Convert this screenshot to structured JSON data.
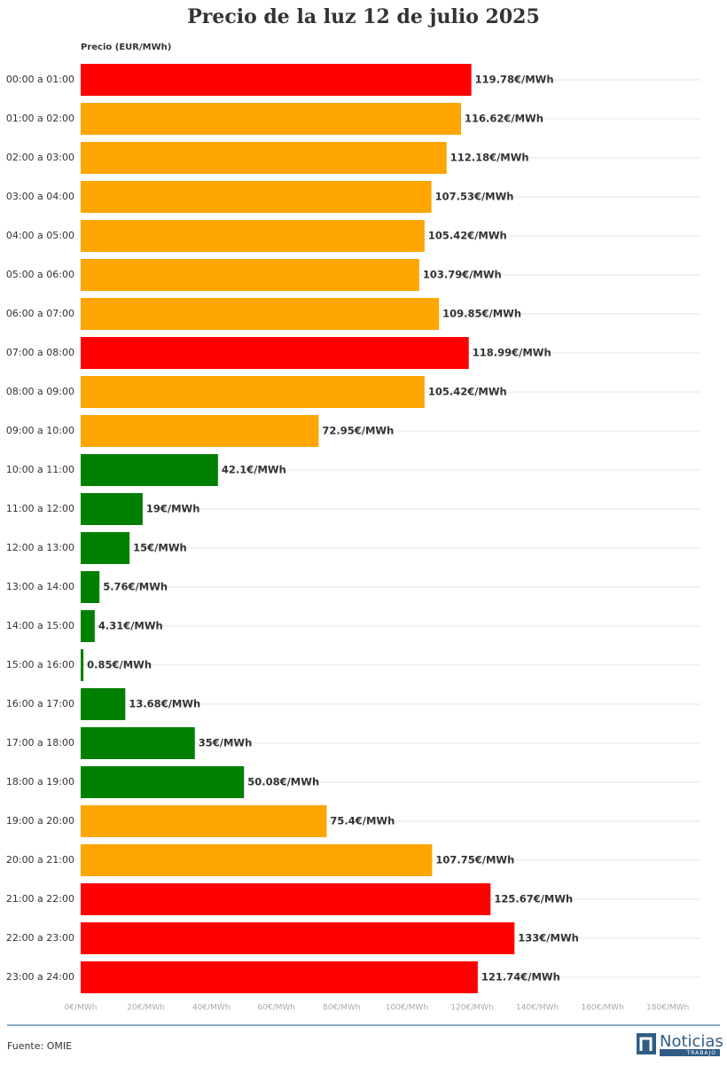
{
  "chart_data": {
    "type": "bar",
    "orientation": "horizontal",
    "title": "Precio de la luz 12 de julio 2025",
    "axis_label": "Precio (EUR/MWh)",
    "categories": [
      "00:00 a 01:00",
      "01:00 a 02:00",
      "02:00 a 03:00",
      "03:00 a 04:00",
      "04:00 a 05:00",
      "05:00 a 06:00",
      "06:00 a 07:00",
      "07:00 a 08:00",
      "08:00 a 09:00",
      "09:00 a 10:00",
      "10:00 a 11:00",
      "11:00 a 12:00",
      "12:00 a 13:00",
      "13:00 a 14:00",
      "14:00 a 15:00",
      "15:00 a 16:00",
      "16:00 a 17:00",
      "17:00 a 18:00",
      "18:00 a 19:00",
      "19:00 a 20:00",
      "20:00 a 21:00",
      "21:00 a 22:00",
      "22:00 a 23:00",
      "23:00 a 24:00"
    ],
    "values": [
      119.78,
      116.62,
      112.18,
      107.53,
      105.42,
      103.79,
      109.85,
      118.99,
      105.42,
      72.95,
      42.1,
      19,
      15,
      5.76,
      4.31,
      0.85,
      13.68,
      35,
      50.08,
      75.4,
      107.75,
      125.67,
      133,
      121.74
    ],
    "value_labels": [
      "119.78€/MWh",
      "116.62€/MWh",
      "112.18€/MWh",
      "107.53€/MWh",
      "105.42€/MWh",
      "103.79€/MWh",
      "109.85€/MWh",
      "118.99€/MWh",
      "105.42€/MWh",
      "72.95€/MWh",
      "42.1€/MWh",
      "19€/MWh",
      "15€/MWh",
      "5.76€/MWh",
      "4.31€/MWh",
      "0.85€/MWh",
      "13.68€/MWh",
      "35€/MWh",
      "50.08€/MWh",
      "75.4€/MWh",
      "107.75€/MWh",
      "125.67€/MWh",
      "133€/MWh",
      "121.74€/MWh"
    ],
    "colors": [
      "#ff0000",
      "#ffa500",
      "#ffa500",
      "#ffa500",
      "#ffa500",
      "#ffa500",
      "#ffa500",
      "#ff0000",
      "#ffa500",
      "#ffa500",
      "#008000",
      "#008000",
      "#008000",
      "#008000",
      "#008000",
      "#008000",
      "#008000",
      "#008000",
      "#008000",
      "#ffa500",
      "#ffa500",
      "#ff0000",
      "#ff0000",
      "#ff0000"
    ],
    "xlim": [
      0,
      190
    ],
    "xticks": [
      {
        "value": 0,
        "label": "0€/MWh"
      },
      {
        "value": 20,
        "label": "20€/MWh"
      },
      {
        "value": 40,
        "label": "40€/MWh"
      },
      {
        "value": 60,
        "label": "60€/MWh"
      },
      {
        "value": 80,
        "label": "80€/MWh"
      },
      {
        "value": 100,
        "label": "100€/MWh"
      },
      {
        "value": 120,
        "label": "120€/MWh"
      },
      {
        "value": 140,
        "label": "140€/MWh"
      },
      {
        "value": 160,
        "label": "160€/MWh"
      },
      {
        "value": 180,
        "label": "180€/MWh"
      }
    ],
    "source": "Fuente: OMIE",
    "logo": {
      "name": "Noticias",
      "sub": "TRABAJO"
    }
  }
}
